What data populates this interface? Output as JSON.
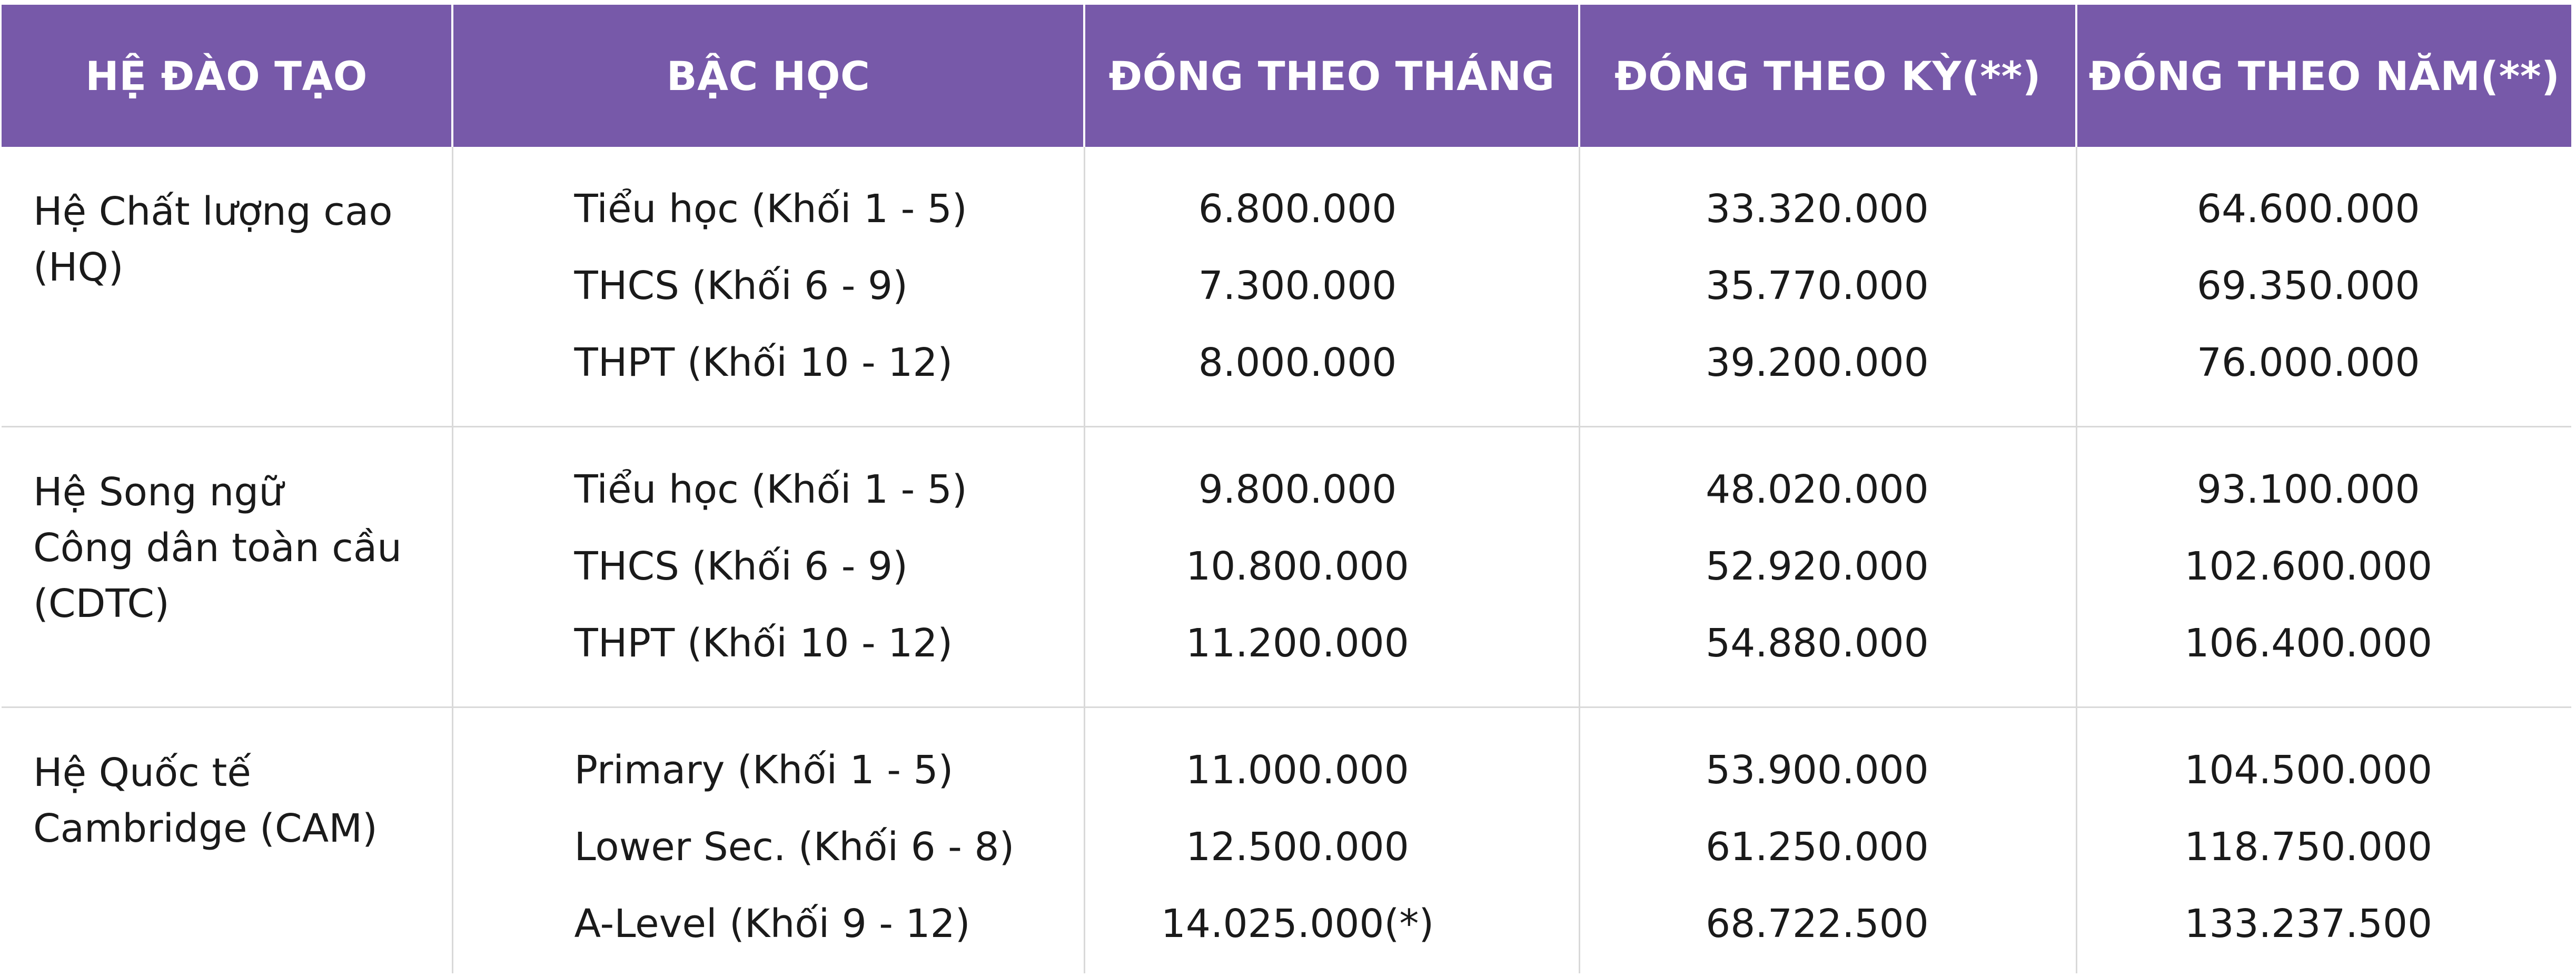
{
  "headers": [
    "HỆ ĐÀO TẠO",
    "BẬC HỌC",
    "ĐÓNG THEO THÁNG",
    "ĐÓNG THEO KỲ(**)",
    "ĐÓNG THEO NĂM(**)"
  ],
  "groups": [
    {
      "system_lines": [
        "Hệ Chất lượng cao",
        "(HQ)"
      ],
      "rows": [
        {
          "level": "Tiểu học (Khối 1 - 5)",
          "monthly": "6.800.000",
          "term": "33.320.000",
          "year": "64.600.000"
        },
        {
          "level": "THCS (Khối 6 - 9)",
          "monthly": "7.300.000",
          "term": "35.770.000",
          "year": "69.350.000"
        },
        {
          "level": "THPT (Khối 10 - 12)",
          "monthly": "8.000.000",
          "term": "39.200.000",
          "year": "76.000.000"
        }
      ]
    },
    {
      "system_lines": [
        "Hệ Song ngữ",
        "Công dân toàn cầu",
        "(CDTC)"
      ],
      "rows": [
        {
          "level": "Tiểu học (Khối 1 - 5)",
          "monthly": "9.800.000",
          "term": "48.020.000",
          "year": "93.100.000"
        },
        {
          "level": "THCS (Khối 6 - 9)",
          "monthly": "10.800.000",
          "term": "52.920.000",
          "year": "102.600.000"
        },
        {
          "level": "THPT (Khối 10 - 12)",
          "monthly": "11.200.000",
          "term": "54.880.000",
          "year": "106.400.000"
        }
      ]
    },
    {
      "system_lines": [
        "Hệ Quốc tế",
        "Cambridge (CAM)"
      ],
      "rows": [
        {
          "level": "Primary (Khối 1 - 5)",
          "monthly": "11.000.000",
          "term": "53.900.000",
          "year": "104.500.000"
        },
        {
          "level": "Lower Sec. (Khối 6 - 8)",
          "monthly": "12.500.000",
          "term": "61.250.000",
          "year": "118.750.000"
        },
        {
          "level": "A-Level (Khối 9 - 12)",
          "monthly": "14.025.000(*)",
          "term": "68.722.500",
          "year": "133.237.500"
        }
      ]
    }
  ],
  "colors": {
    "header_bg": "#7759a9",
    "header_text": "#ffffff",
    "grid_line": "#d9d9d9",
    "body_text": "#1a1a1a"
  }
}
